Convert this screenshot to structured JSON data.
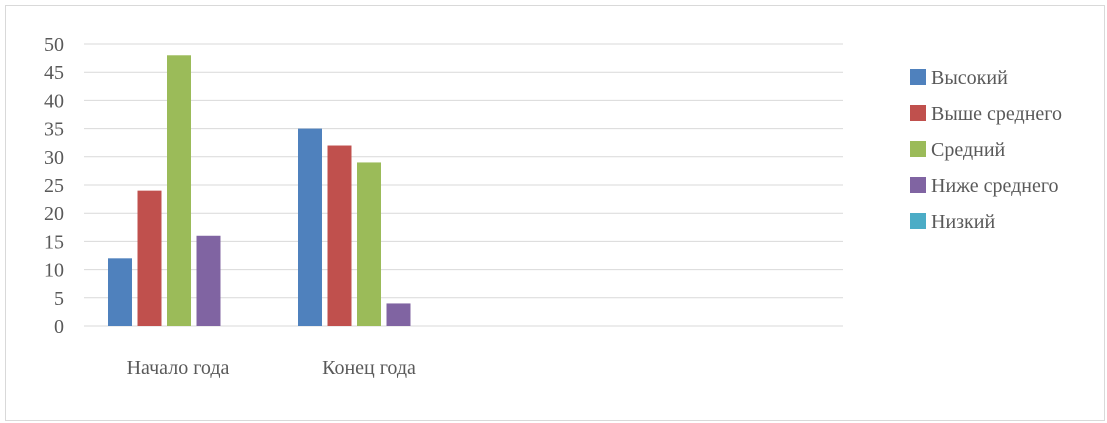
{
  "chart_data": {
    "type": "bar",
    "title": "",
    "xlabel": "",
    "ylabel": "",
    "ylim": [
      0,
      50
    ],
    "yticks": [
      0,
      5,
      10,
      15,
      20,
      25,
      30,
      35,
      40,
      45,
      50
    ],
    "grid": true,
    "legend": "right",
    "categories": [
      "Начало года",
      "Конец года"
    ],
    "series": [
      {
        "name": "Высокий",
        "color": "#4f81bd",
        "values": [
          12,
          35
        ]
      },
      {
        "name": "Выше среднего",
        "color": "#c0504d",
        "values": [
          24,
          32
        ]
      },
      {
        "name": "Средний",
        "color": "#9bbb59",
        "values": [
          48,
          29
        ]
      },
      {
        "name": "Ниже среднего",
        "color": "#8064a2",
        "values": [
          16,
          4
        ]
      },
      {
        "name": "Низкий",
        "color": "#4bacc6",
        "values": [
          0,
          0
        ]
      }
    ]
  }
}
